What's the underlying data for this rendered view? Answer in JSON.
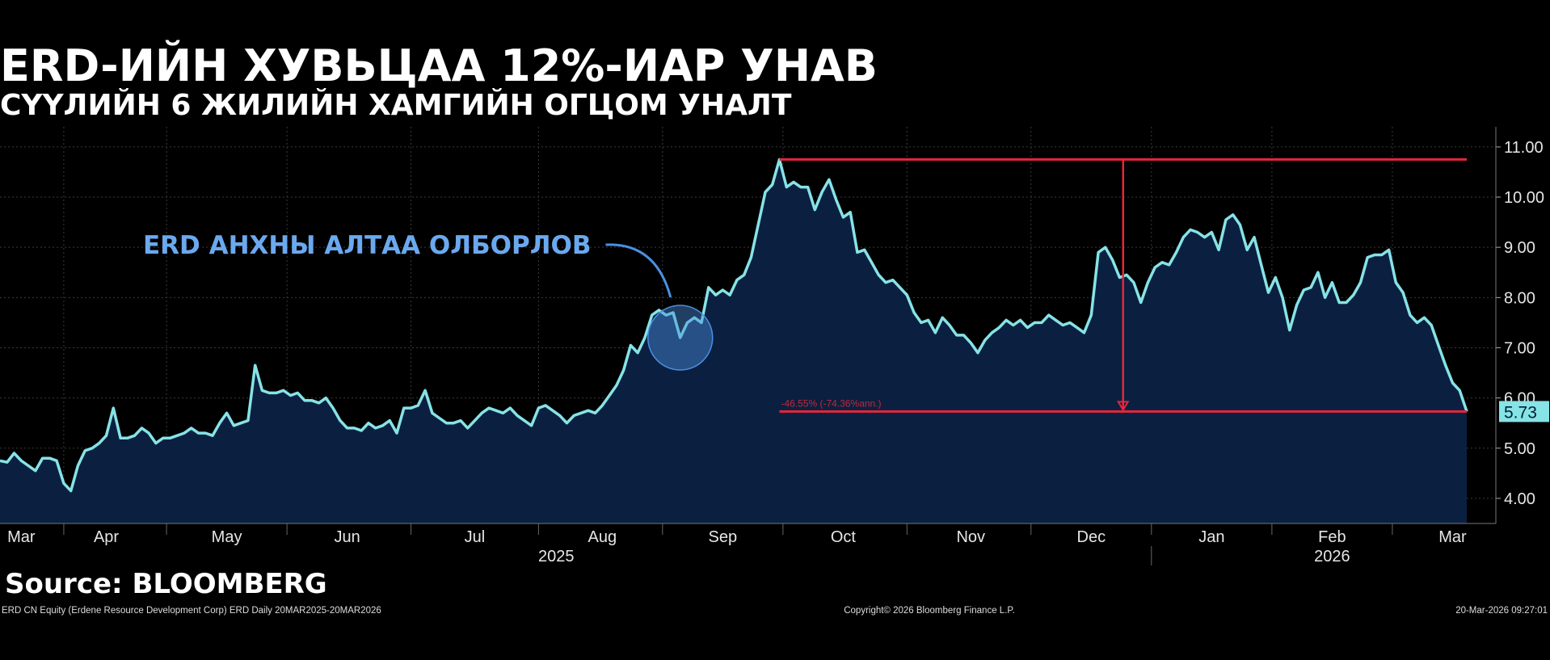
{
  "chart_data": {
    "type": "area",
    "title": "ERD-ИЙН ХУВЬЦАА 12%-ИАР УНАВ",
    "subtitle": "СҮҮЛИЙН 6 ЖИЛИЙН ХАМГИЙН ОГЦОМ УНАЛТ",
    "callout": "ERD АНХНЫ АЛТАА ОЛБОРЛОВ",
    "change_label": "-46.55% (-74.36%ann.)",
    "source": "Source: BLOOMBERG",
    "footer_left": "ERD CN Equity (Erdene Resource Development Corp) ERD Daily 20MAR2025-20MAR2026",
    "footer_center": "Copyright© 2026 Bloomberg Finance L.P.",
    "footer_right": "20-Mar-2026 09:27:01",
    "color": "#86e3e6",
    "fill": "#0b2040",
    "marker_color": "#e8253a",
    "grid": true,
    "x_groups": [
      "2025",
      "2026"
    ],
    "categories": [
      null,
      null,
      null,
      "Mar",
      null,
      null,
      null,
      null,
      null,
      null,
      null,
      null,
      null,
      null,
      null,
      "Apr",
      null,
      null,
      null,
      null,
      null,
      null,
      null,
      null,
      null,
      null,
      null,
      null,
      null,
      null,
      null,
      null,
      "May",
      null,
      null,
      null,
      null,
      null,
      null,
      null,
      null,
      null,
      null,
      null,
      null,
      null,
      null,
      null,
      null,
      "Jun",
      null,
      null,
      null,
      null,
      null,
      null,
      null,
      null,
      null,
      null,
      null,
      null,
      null,
      null,
      null,
      null,
      null,
      "Jul",
      null,
      null,
      null,
      null,
      null,
      null,
      null,
      null,
      null,
      null,
      null,
      null,
      null,
      null,
      null,
      null,
      null,
      "Aug",
      null,
      null,
      null,
      null,
      null,
      null,
      null,
      null,
      null,
      null,
      null,
      null,
      null,
      null,
      null,
      null,
      "Sep",
      null,
      null,
      null,
      null,
      null,
      null,
      null,
      null,
      null,
      null,
      null,
      null,
      null,
      null,
      null,
      null,
      "Oct",
      null,
      null,
      null,
      null,
      null,
      null,
      null,
      null,
      null,
      null,
      null,
      null,
      null,
      null,
      null,
      null,
      null,
      "Nov",
      null,
      null,
      null,
      null,
      null,
      null,
      null,
      null,
      null,
      null,
      null,
      null,
      null,
      null,
      null,
      null,
      "Dec",
      null,
      null,
      null,
      null,
      null,
      null,
      null,
      null,
      null,
      null,
      null,
      null,
      null,
      null,
      null,
      null,
      "Jan",
      null,
      null,
      null,
      null,
      null,
      null,
      null,
      null,
      null,
      null,
      null,
      null,
      null,
      null,
      null,
      null,
      "Feb",
      null,
      null,
      null,
      null,
      null,
      null,
      null,
      null,
      null,
      null,
      null,
      null,
      null,
      null,
      null,
      null,
      "Mar",
      null,
      null
    ],
    "values": [
      4.75,
      4.72,
      4.9,
      4.75,
      4.65,
      4.55,
      4.8,
      4.8,
      4.75,
      4.3,
      4.15,
      4.65,
      4.95,
      5.0,
      5.1,
      5.25,
      5.8,
      5.2,
      5.2,
      5.25,
      5.4,
      5.3,
      5.1,
      5.2,
      5.2,
      5.25,
      5.3,
      5.4,
      5.3,
      5.3,
      5.25,
      5.5,
      5.7,
      5.45,
      5.5,
      5.55,
      6.65,
      6.15,
      6.1,
      6.1,
      6.15,
      6.05,
      6.1,
      5.95,
      5.95,
      5.9,
      6.0,
      5.8,
      5.55,
      5.4,
      5.4,
      5.35,
      5.5,
      5.4,
      5.45,
      5.55,
      5.3,
      5.8,
      5.8,
      5.85,
      6.15,
      5.7,
      5.6,
      5.5,
      5.5,
      5.55,
      5.4,
      5.55,
      5.7,
      5.8,
      5.75,
      5.7,
      5.8,
      5.65,
      5.55,
      5.45,
      5.8,
      5.85,
      5.75,
      5.65,
      5.5,
      5.65,
      5.7,
      5.75,
      5.7,
      5.85,
      6.05,
      6.25,
      6.55,
      7.05,
      6.9,
      7.2,
      7.65,
      7.75,
      7.65,
      7.7,
      7.2,
      7.5,
      7.6,
      7.5,
      8.2,
      8.05,
      8.15,
      8.05,
      8.35,
      8.45,
      8.8,
      9.45,
      10.1,
      10.25,
      10.75,
      10.2,
      10.3,
      10.2,
      10.2,
      9.75,
      10.1,
      10.35,
      9.95,
      9.6,
      9.7,
      8.9,
      8.95,
      8.7,
      8.45,
      8.3,
      8.35,
      8.2,
      8.05,
      7.7,
      7.5,
      7.55,
      7.3,
      7.6,
      7.45,
      7.25,
      7.25,
      7.1,
      6.9,
      7.15,
      7.3,
      7.4,
      7.55,
      7.45,
      7.55,
      7.4,
      7.5,
      7.5,
      7.65,
      7.55,
      7.45,
      7.5,
      7.4,
      7.3,
      7.65,
      8.9,
      9.0,
      8.75,
      8.4,
      8.45,
      8.3,
      7.9,
      8.3,
      8.6,
      8.7,
      8.65,
      8.9,
      9.2,
      9.35,
      9.3,
      9.2,
      9.3,
      8.95,
      9.55,
      9.65,
      9.45,
      8.95,
      9.2,
      8.65,
      8.1,
      8.4,
      8.0,
      7.35,
      7.85,
      8.15,
      8.2,
      8.5,
      8.0,
      8.3,
      7.9,
      7.9,
      8.05,
      8.3,
      8.8,
      8.85,
      8.85,
      8.95,
      8.3,
      8.1,
      7.65,
      7.5,
      7.6,
      7.45,
      7.05,
      6.65,
      6.3,
      6.15,
      5.73
    ],
    "ylim": [
      3.5,
      11.4
    ],
    "yticks": [
      {
        "value": 4,
        "label": "4.00"
      },
      {
        "value": 5,
        "label": "5.00"
      },
      {
        "value": 6,
        "label": "6.00"
      },
      {
        "value": 7,
        "label": "7.00"
      },
      {
        "value": 8,
        "label": "8.00"
      },
      {
        "value": 9,
        "label": "9.00"
      },
      {
        "value": 10,
        "label": "10.00"
      },
      {
        "value": 11,
        "label": "11.00"
      }
    ]
  }
}
